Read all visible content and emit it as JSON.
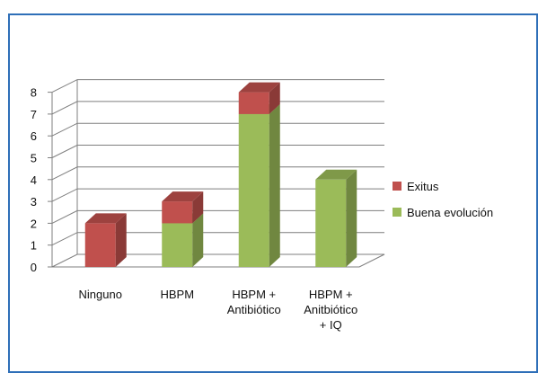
{
  "colors": {
    "frame": "#2e6fb8",
    "gridline": "#7f7f7f",
    "exitus": "#c0504d",
    "buena_evolucion": "#9bbb59"
  },
  "chart_data": {
    "type": "bar",
    "stacked": true,
    "three_d": true,
    "title": "",
    "xlabel": "",
    "ylabel": "",
    "ylim": [
      0,
      8
    ],
    "yticks": [
      0,
      1,
      2,
      3,
      4,
      5,
      6,
      7,
      8
    ],
    "grid": true,
    "legend_position": "right",
    "categories": [
      [
        "Ninguno"
      ],
      [
        "HBPM"
      ],
      [
        "HBPM +",
        "Antibiótico"
      ],
      [
        "HBPM +",
        "Anitbiótico",
        "+ IQ"
      ]
    ],
    "series": [
      {
        "name": "Buena evolución",
        "color": "#9bbb59",
        "values": [
          0,
          2,
          7,
          4
        ]
      },
      {
        "name": "Exitus",
        "color": "#c0504d",
        "values": [
          2,
          1,
          1,
          0
        ]
      }
    ],
    "legend": [
      "Exitus",
      "Buena evolución"
    ]
  }
}
